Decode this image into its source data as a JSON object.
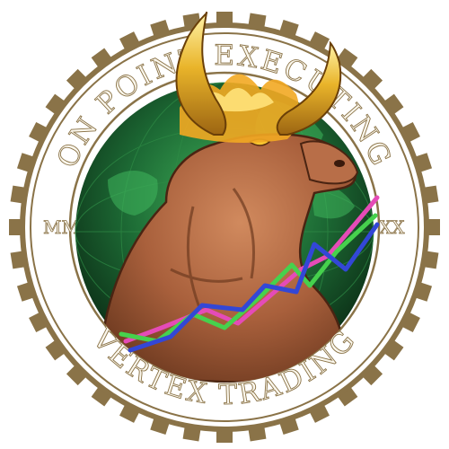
{
  "emblem": {
    "top_text": "ON POINT EXECUTING",
    "bottom_text": "VERTEX TRADING",
    "left_mark": "MM",
    "right_mark": "XX",
    "colors": {
      "gold": "#8a7348",
      "cream": "#fbf7ec",
      "globe_green": "#1d6b35",
      "bull_brown": "#a9603c",
      "flame": "#f2a822",
      "line_pink": "#e54bb7",
      "line_green": "#46d14d",
      "line_blue": "#3347d6"
    }
  }
}
